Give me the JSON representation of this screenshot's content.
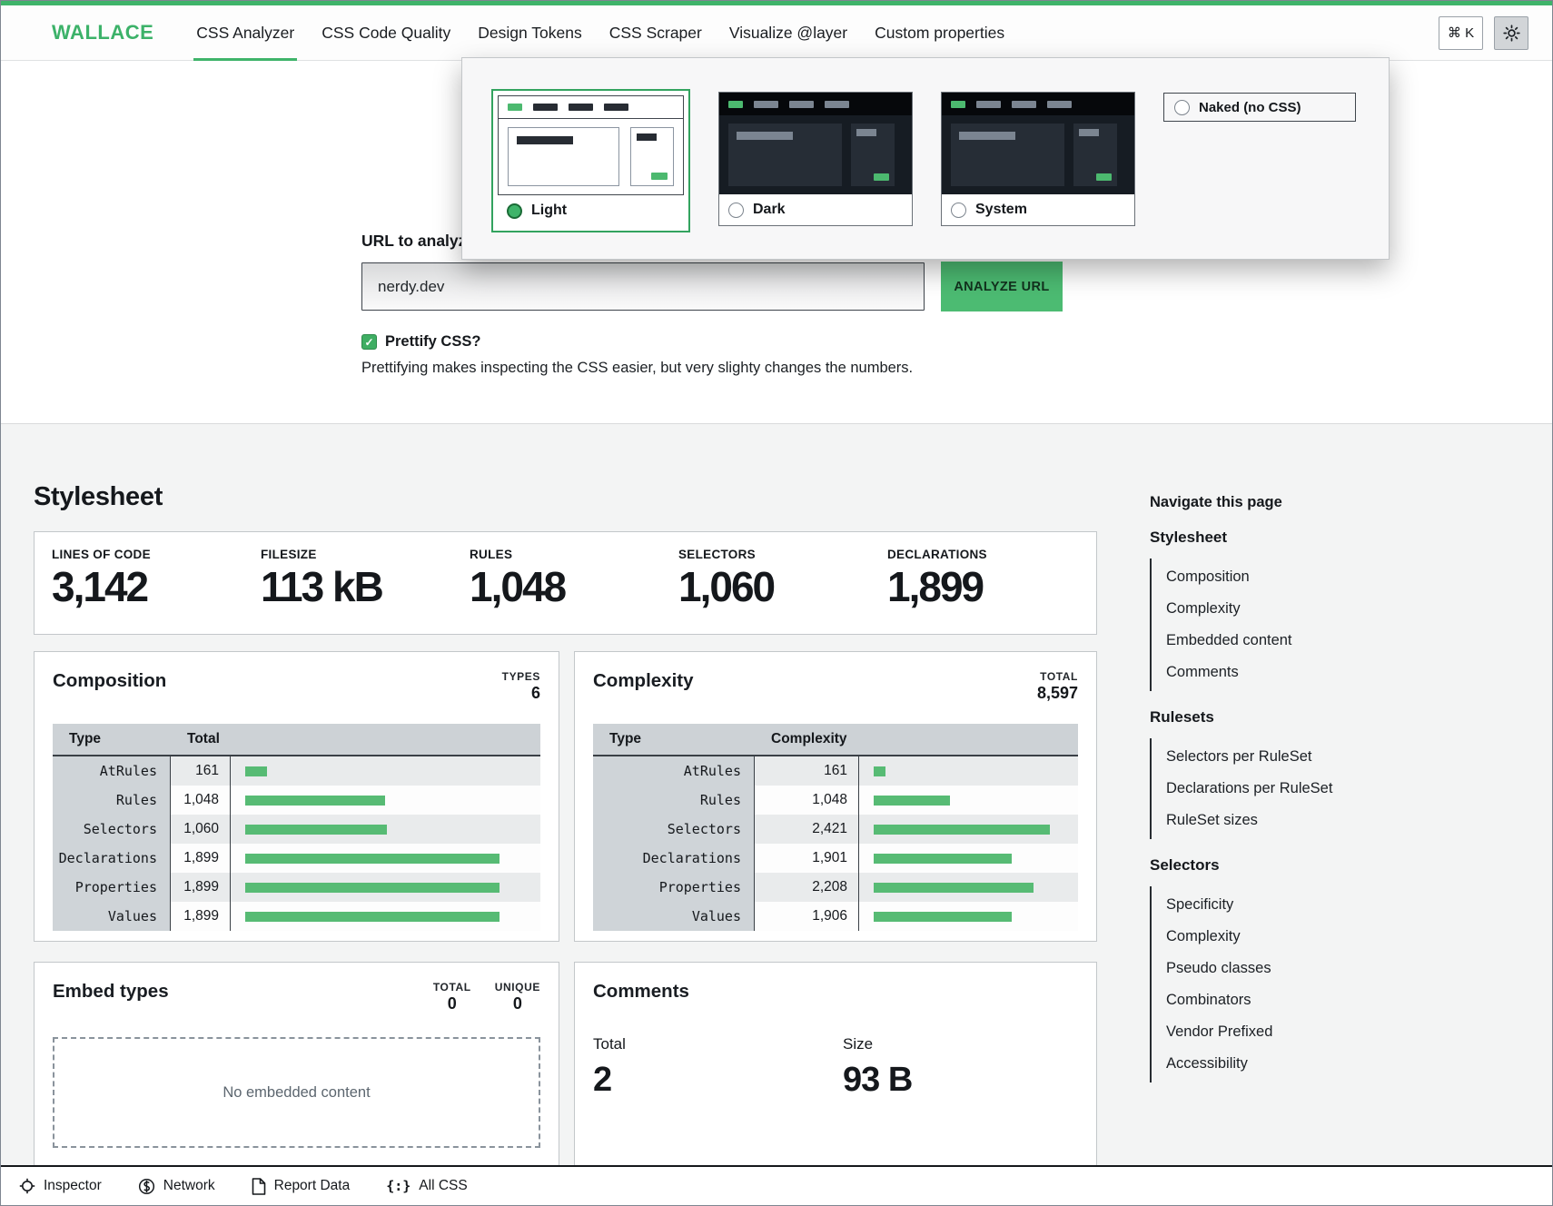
{
  "header": {
    "logo": "WALLACE",
    "shortcut": "⌘ K",
    "nav_items": [
      {
        "label": "CSS Analyzer",
        "active": true
      },
      {
        "label": "CSS Code Quality",
        "active": false
      },
      {
        "label": "Design Tokens",
        "active": false
      },
      {
        "label": "CSS Scraper",
        "active": false
      },
      {
        "label": "Visualize @layer",
        "active": false
      },
      {
        "label": "Custom properties",
        "active": false
      }
    ]
  },
  "theme_picker": {
    "options": [
      {
        "label": "Light",
        "selected": true
      },
      {
        "label": "Dark",
        "selected": false
      },
      {
        "label": "System",
        "selected": false
      },
      {
        "label": "Naked (no CSS)",
        "selected": false
      }
    ]
  },
  "form": {
    "url_label": "URL to analyze",
    "url_value": "nerdy.dev",
    "analyze_button": "ANALYZE URL",
    "prettify_label": "Prettify CSS?",
    "prettify_checked": true,
    "prettify_help": "Prettifying makes inspecting the CSS easier, but very slighty changes the numbers."
  },
  "stylesheet": {
    "title": "Stylesheet",
    "stats": [
      {
        "label": "LINES OF CODE",
        "value": "3,142"
      },
      {
        "label": "FILESIZE",
        "value": "113 kB"
      },
      {
        "label": "RULES",
        "value": "1,048"
      },
      {
        "label": "SELECTORS",
        "value": "1,060"
      },
      {
        "label": "DECLARATIONS",
        "value": "1,899"
      }
    ]
  },
  "composition": {
    "title": "Composition",
    "meta_label": "TYPES",
    "meta_value": "6",
    "col_type": "Type",
    "col_value": "Total",
    "max": 1899,
    "rows": [
      {
        "type": "AtRules",
        "display": "161",
        "value": 161
      },
      {
        "type": "Rules",
        "display": "1,048",
        "value": 1048
      },
      {
        "type": "Selectors",
        "display": "1,060",
        "value": 1060
      },
      {
        "type": "Declarations",
        "display": "1,899",
        "value": 1899
      },
      {
        "type": "Properties",
        "display": "1,899",
        "value": 1899
      },
      {
        "type": "Values",
        "display": "1,899",
        "value": 1899
      }
    ]
  },
  "complexity": {
    "title": "Complexity",
    "meta_label": "TOTAL",
    "meta_value": "8,597",
    "col_type": "Type",
    "col_value": "Complexity",
    "max": 2421,
    "rows": [
      {
        "type": "AtRules",
        "display": "161",
        "value": 161
      },
      {
        "type": "Rules",
        "display": "1,048",
        "value": 1048
      },
      {
        "type": "Selectors",
        "display": "2,421",
        "value": 2421
      },
      {
        "type": "Declarations",
        "display": "1,901",
        "value": 1901
      },
      {
        "type": "Properties",
        "display": "2,208",
        "value": 2208
      },
      {
        "type": "Values",
        "display": "1,906",
        "value": 1906
      }
    ]
  },
  "embed_types": {
    "title": "Embed types",
    "metas": [
      {
        "label": "TOTAL",
        "value": "0"
      },
      {
        "label": "UNIQUE",
        "value": "0"
      }
    ],
    "empty_message": "No embedded content"
  },
  "comments": {
    "title": "Comments",
    "stats": [
      {
        "label": "Total",
        "value": "2"
      },
      {
        "label": "Size",
        "value": "93 B"
      }
    ]
  },
  "page_nav": {
    "title": "Navigate this page",
    "sections": [
      {
        "label": "Stylesheet",
        "items": [
          "Composition",
          "Complexity",
          "Embedded content",
          "Comments"
        ]
      },
      {
        "label": "Rulesets",
        "items": [
          "Selectors per RuleSet",
          "Declarations per RuleSet",
          "RuleSet sizes"
        ]
      },
      {
        "label": "Selectors",
        "items": [
          "Specificity",
          "Complexity",
          "Pseudo classes",
          "Combinators",
          "Vendor Prefixed",
          "Accessibility"
        ]
      }
    ]
  },
  "bottom_bar": {
    "items": [
      {
        "label": "Inspector"
      },
      {
        "label": "Network"
      },
      {
        "label": "Report Data"
      },
      {
        "label": "All CSS"
      }
    ]
  },
  "colors": {
    "accent": "#3fb46a",
    "bar": "#57bb74",
    "button": "#4cbb72"
  }
}
